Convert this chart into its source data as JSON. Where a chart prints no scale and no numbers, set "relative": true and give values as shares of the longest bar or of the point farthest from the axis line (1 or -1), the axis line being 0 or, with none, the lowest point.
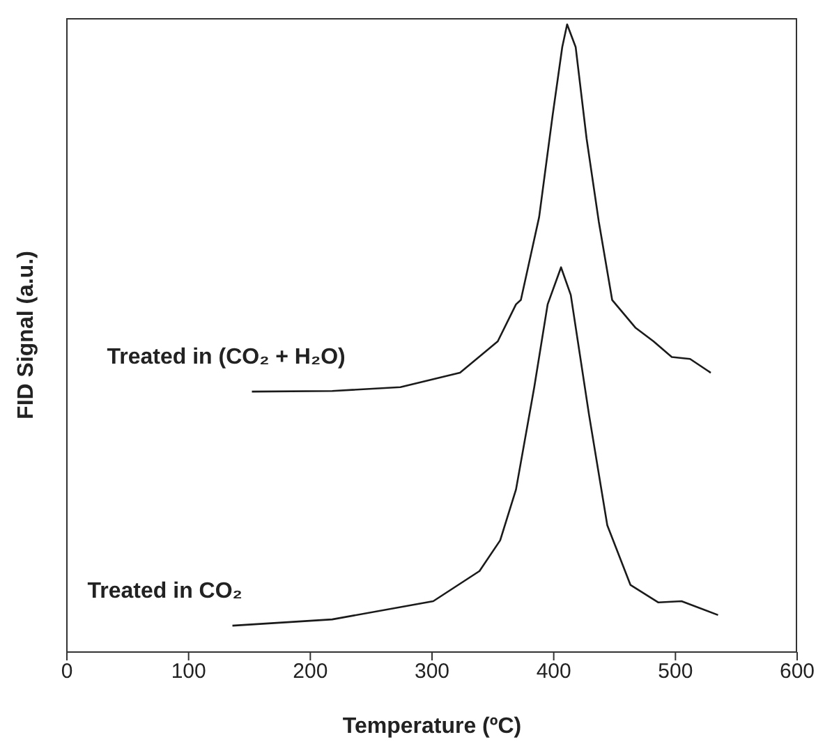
{
  "chart_data": {
    "type": "line",
    "relative": true,
    "xlabel": "Temperature (ºC)",
    "ylabel": "FID Signal (a.u.)",
    "xlim": [
      0,
      600
    ],
    "xticks": [
      0,
      100,
      200,
      300,
      400,
      500,
      600
    ],
    "marker": "none",
    "line_style": "solid",
    "series": [
      {
        "name": "Treated in (CO₂ + H₂O)",
        "color": "#1a1a1a",
        "x": [
          152,
          218,
          274,
          323,
          354,
          369,
          373,
          388,
          399,
          407,
          411,
          418,
          427,
          437,
          448,
          467,
          482,
          497,
          512,
          529
        ],
        "values": [
          0.415,
          0.416,
          0.422,
          0.445,
          0.495,
          0.554,
          0.561,
          0.693,
          0.854,
          0.964,
          1,
          0.964,
          0.818,
          0.686,
          0.561,
          0.517,
          0.495,
          0.47,
          0.467,
          0.445
        ]
      },
      {
        "name": "Treated in CO₂",
        "color": "#1a1a1a",
        "x": [
          136,
          218,
          301,
          339,
          356,
          369,
          384,
          395,
          406,
          414,
          429,
          444,
          463,
          486,
          505,
          535
        ],
        "values": [
          0.042,
          0.052,
          0.081,
          0.129,
          0.178,
          0.259,
          0.422,
          0.554,
          0.613,
          0.569,
          0.378,
          0.202,
          0.107,
          0.079,
          0.081,
          0.059
        ]
      }
    ]
  }
}
